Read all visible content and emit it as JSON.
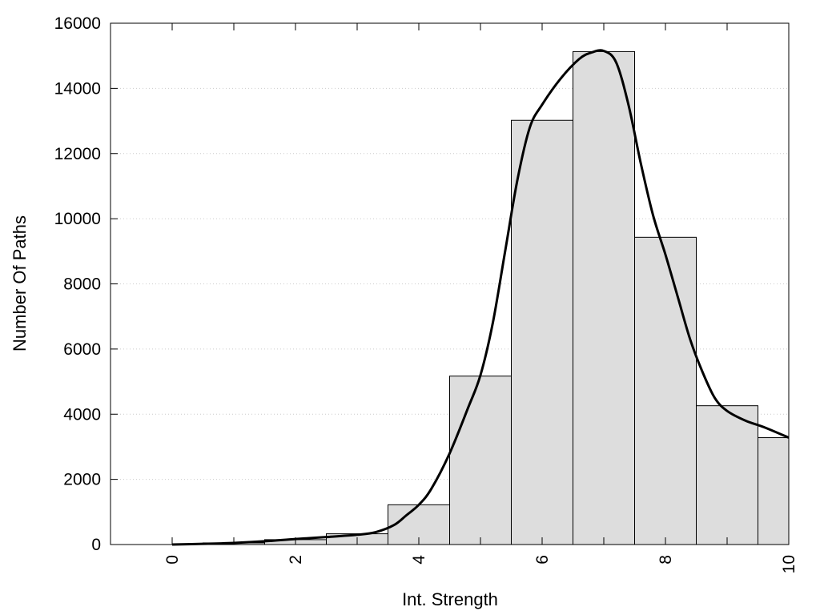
{
  "chart_data": {
    "type": "bar",
    "title": "",
    "xlabel": "Int. Strength",
    "ylabel": "Number Of Paths",
    "xlim": [
      -1,
      10
    ],
    "ylim": [
      0,
      16000
    ],
    "x_ticks": [
      0,
      2,
      4,
      6,
      8,
      10
    ],
    "y_ticks": [
      0,
      2000,
      4000,
      6000,
      8000,
      10000,
      12000,
      14000,
      16000
    ],
    "grid": "horizontal dotted",
    "legend": "none",
    "colors": {
      "bar_fill": "#dddddd",
      "bar_stroke": "#000000",
      "curve": "#000000",
      "grid": "#cccccc"
    },
    "bars": [
      {
        "x0": -0.5,
        "x1": 0.5,
        "value": 0
      },
      {
        "x0": 0.5,
        "x1": 1.5,
        "value": 50
      },
      {
        "x0": 1.5,
        "x1": 2.5,
        "value": 150
      },
      {
        "x0": 2.5,
        "x1": 3.5,
        "value": 330
      },
      {
        "x0": 3.5,
        "x1": 4.5,
        "value": 1220
      },
      {
        "x0": 4.5,
        "x1": 5.5,
        "value": 5170
      },
      {
        "x0": 5.5,
        "x1": 6.5,
        "value": 13020
      },
      {
        "x0": 6.5,
        "x1": 7.5,
        "value": 15130
      },
      {
        "x0": 7.5,
        "x1": 8.5,
        "value": 9430
      },
      {
        "x0": 8.5,
        "x1": 9.5,
        "value": 4260
      },
      {
        "x0": 9.5,
        "x1": 10.5,
        "value": 3280
      }
    ],
    "curve": {
      "x": [
        0,
        0.5,
        1,
        1.5,
        2,
        2.5,
        3,
        3.3,
        3.6,
        3.8,
        4,
        4.2,
        4.5,
        4.8,
        5,
        5.2,
        5.4,
        5.6,
        5.8,
        6,
        6.3,
        6.6,
        6.8,
        7,
        7.2,
        7.4,
        7.6,
        7.8,
        8,
        8.2,
        8.4,
        8.6,
        8.8,
        9,
        9.3,
        9.6,
        10
      ],
      "y": [
        0,
        20,
        50,
        100,
        170,
        230,
        300,
        380,
        600,
        900,
        1220,
        1700,
        2800,
        4200,
        5200,
        6800,
        9000,
        11200,
        12800,
        13500,
        14300,
        14900,
        15100,
        15150,
        14800,
        13500,
        11700,
        10100,
        8900,
        7600,
        6300,
        5300,
        4500,
        4100,
        3800,
        3600,
        3280
      ]
    }
  }
}
